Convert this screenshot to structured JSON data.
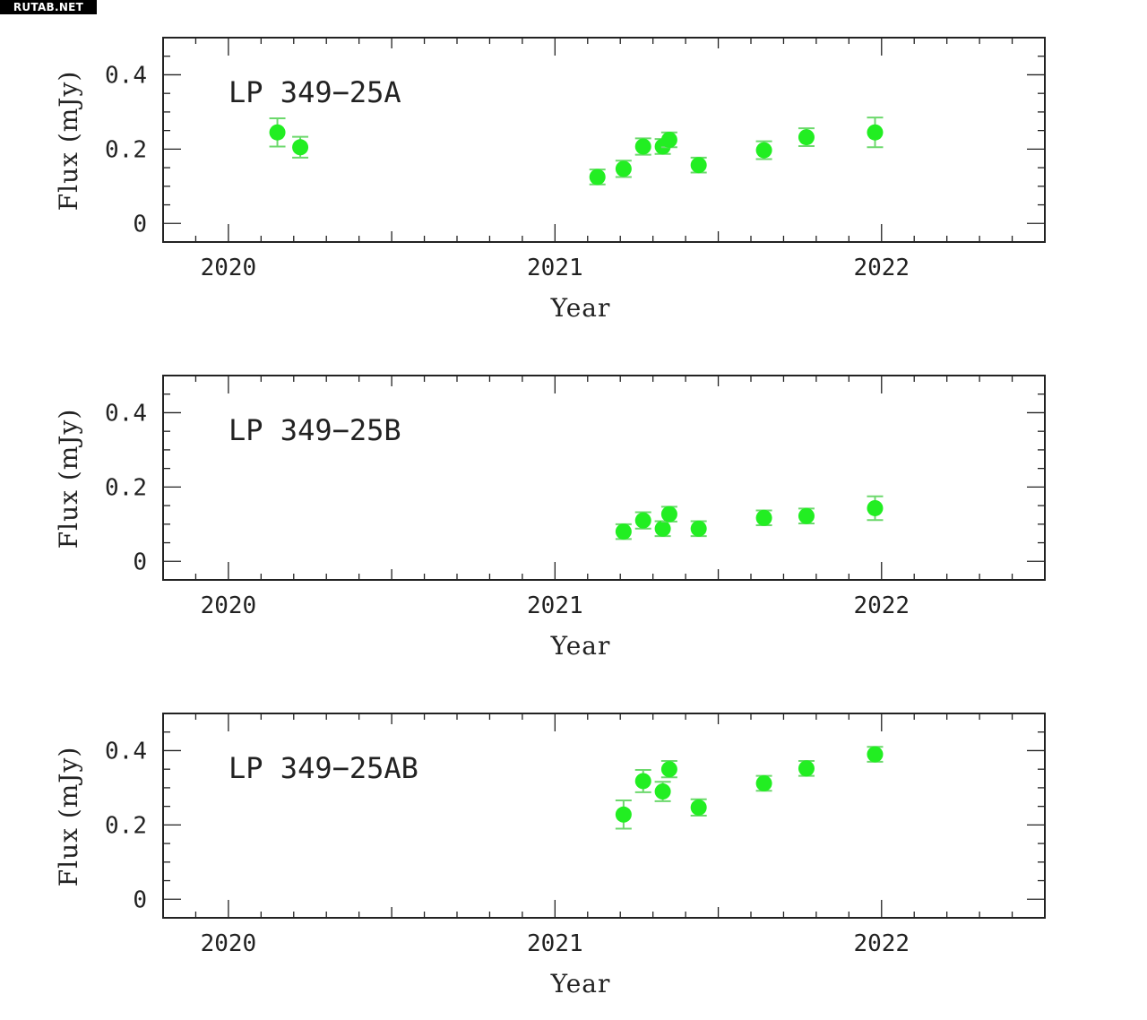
{
  "watermark": "RUTAB.NET",
  "colors": {
    "marker": "#22ee22",
    "errorbar": "#6cd86c",
    "axes": "#222222"
  },
  "chart_data": [
    {
      "type": "scatter",
      "title": "LP 349−25A",
      "xlabel": "Year",
      "ylabel": "Flux (mJy)",
      "xlim": [
        2019.8,
        2022.5
      ],
      "ylim": [
        -0.05,
        0.5
      ],
      "xticks": [
        2020,
        2021,
        2022
      ],
      "xticklabels": [
        "2020",
        "2021",
        "2022"
      ],
      "yticks": [
        0,
        0.2,
        0.4
      ],
      "yticklabels": [
        "0",
        "0.2",
        "0.4"
      ],
      "points": [
        {
          "x": 2020.15,
          "y": 0.245,
          "err": 0.038
        },
        {
          "x": 2020.22,
          "y": 0.205,
          "err": 0.028
        },
        {
          "x": 2021.13,
          "y": 0.125,
          "err": 0.02
        },
        {
          "x": 2021.21,
          "y": 0.147,
          "err": 0.022
        },
        {
          "x": 2021.27,
          "y": 0.207,
          "err": 0.022
        },
        {
          "x": 2021.33,
          "y": 0.207,
          "err": 0.02
        },
        {
          "x": 2021.35,
          "y": 0.225,
          "err": 0.02
        },
        {
          "x": 2021.44,
          "y": 0.157,
          "err": 0.02
        },
        {
          "x": 2021.64,
          "y": 0.197,
          "err": 0.024
        },
        {
          "x": 2021.77,
          "y": 0.232,
          "err": 0.024
        },
        {
          "x": 2021.98,
          "y": 0.245,
          "err": 0.04
        }
      ]
    },
    {
      "type": "scatter",
      "title": "LP 349−25B",
      "xlabel": "Year",
      "ylabel": "Flux (mJy)",
      "xlim": [
        2019.8,
        2022.5
      ],
      "ylim": [
        -0.05,
        0.5
      ],
      "xticks": [
        2020,
        2021,
        2022
      ],
      "xticklabels": [
        "2020",
        "2021",
        "2022"
      ],
      "yticks": [
        0,
        0.2,
        0.4
      ],
      "yticklabels": [
        "0",
        "0.2",
        "0.4"
      ],
      "points": [
        {
          "x": 2021.21,
          "y": 0.08,
          "err": 0.02
        },
        {
          "x": 2021.27,
          "y": 0.11,
          "err": 0.022
        },
        {
          "x": 2021.33,
          "y": 0.088,
          "err": 0.02
        },
        {
          "x": 2021.35,
          "y": 0.127,
          "err": 0.02
        },
        {
          "x": 2021.44,
          "y": 0.088,
          "err": 0.02
        },
        {
          "x": 2021.64,
          "y": 0.117,
          "err": 0.02
        },
        {
          "x": 2021.77,
          "y": 0.122,
          "err": 0.02
        },
        {
          "x": 2021.98,
          "y": 0.143,
          "err": 0.032
        }
      ]
    },
    {
      "type": "scatter",
      "title": "LP 349−25AB",
      "xlabel": "Year",
      "ylabel": "Flux (mJy)",
      "xlim": [
        2019.8,
        2022.5
      ],
      "ylim": [
        -0.05,
        0.5
      ],
      "xticks": [
        2020,
        2021,
        2022
      ],
      "xticklabels": [
        "2020",
        "2021",
        "2022"
      ],
      "yticks": [
        0,
        0.2,
        0.4
      ],
      "yticklabels": [
        "0",
        "0.2",
        "0.4"
      ],
      "points": [
        {
          "x": 2021.21,
          "y": 0.228,
          "err": 0.038
        },
        {
          "x": 2021.27,
          "y": 0.318,
          "err": 0.03
        },
        {
          "x": 2021.33,
          "y": 0.29,
          "err": 0.026
        },
        {
          "x": 2021.35,
          "y": 0.35,
          "err": 0.022
        },
        {
          "x": 2021.44,
          "y": 0.247,
          "err": 0.022
        },
        {
          "x": 2021.64,
          "y": 0.312,
          "err": 0.02
        },
        {
          "x": 2021.77,
          "y": 0.352,
          "err": 0.02
        },
        {
          "x": 2021.98,
          "y": 0.39,
          "err": 0.02
        }
      ]
    }
  ]
}
